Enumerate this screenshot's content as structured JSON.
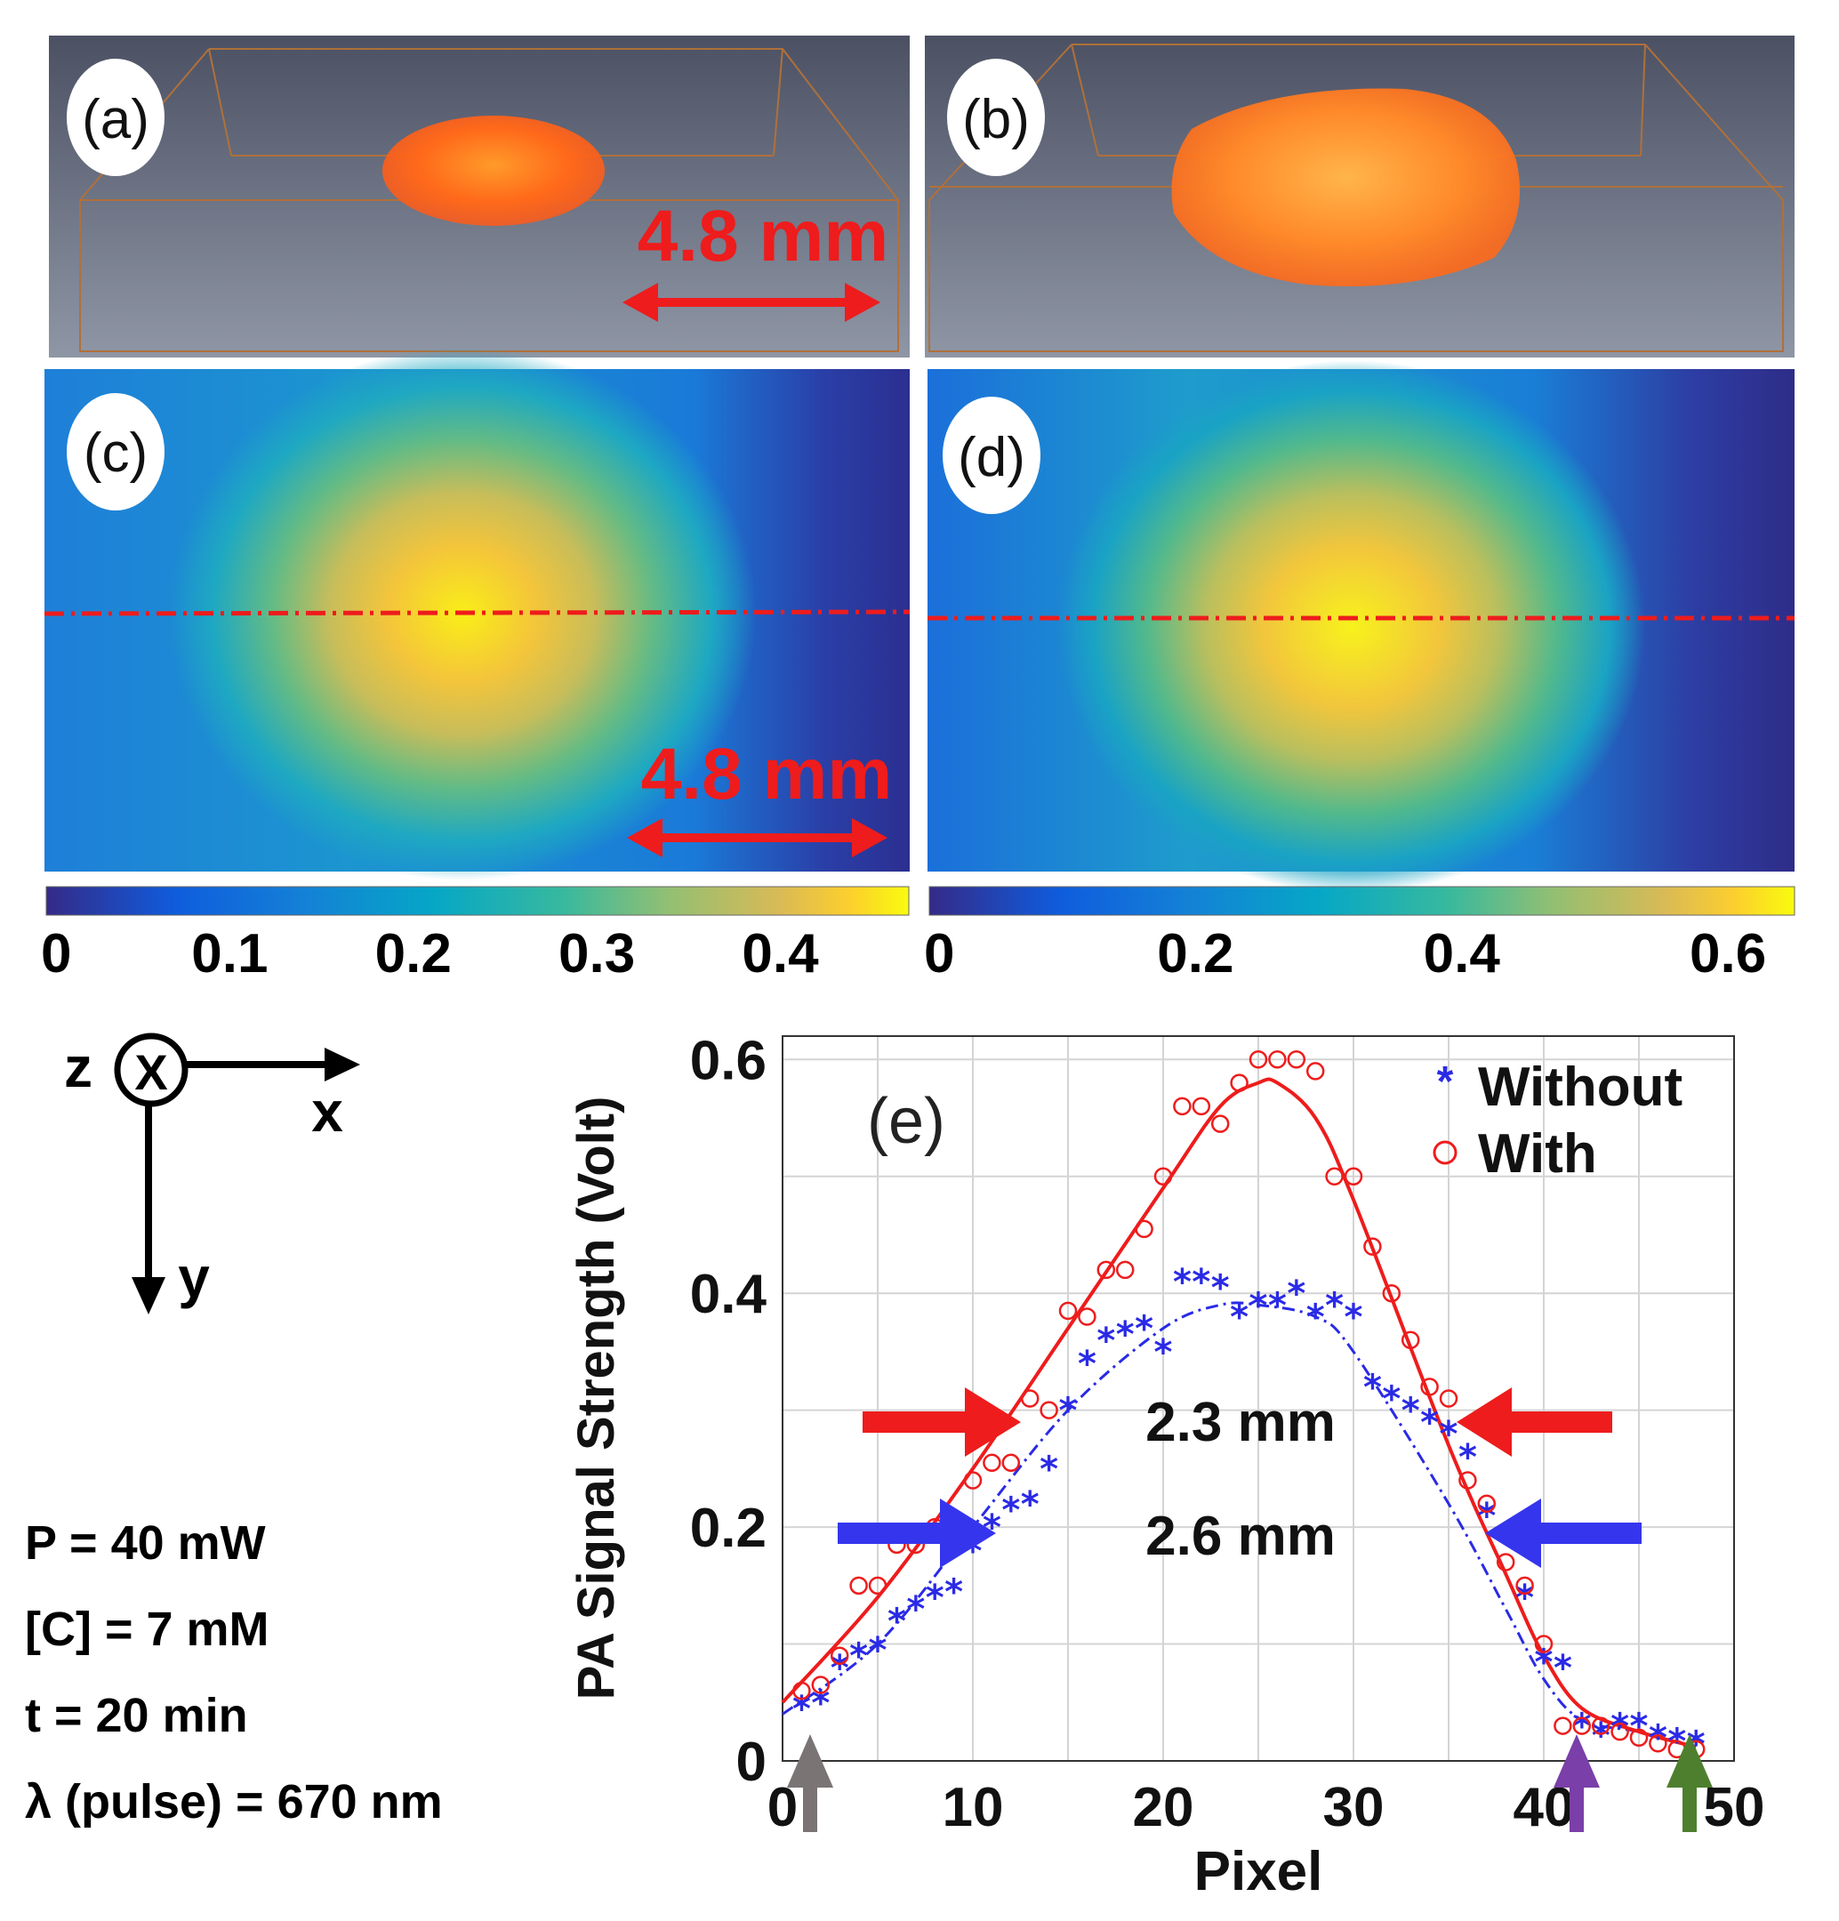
{
  "panel_labels": {
    "a": "(a)",
    "b": "(b)",
    "c": "(c)",
    "d": "(d)",
    "e": "(e)"
  },
  "scale_bar_label": "4.8 mm",
  "colorbar_c": {
    "ticks": [
      0,
      0.1,
      0.2,
      0.3,
      0.4
    ],
    "labels": [
      "0",
      "0.1",
      "0.2",
      "0.3",
      "0.4"
    ],
    "max": 0.47
  },
  "colorbar_d": {
    "ticks": [
      0,
      0.2,
      0.4,
      0.6
    ],
    "labels": [
      "0",
      "0.2",
      "0.4",
      "0.6"
    ],
    "max": 0.65
  },
  "axes_legend": {
    "z": "z",
    "x": "x",
    "y": "y",
    "symbol": "X"
  },
  "params": [
    "P = 40 mW",
    "[C] = 7 mM",
    "t = 20 min",
    "λ (pulse) = 670 nm"
  ],
  "colors": {
    "with": "#ee1c1c",
    "without": "#2a2ae6",
    "red_arrow": "#ee1c1c",
    "blue_arrow": "#3535ee",
    "gray_arrow": "#7a7474",
    "purple_arrow": "#7a3fa8",
    "green_arrow": "#4e7f2f"
  },
  "chart_data": {
    "type": "scatter",
    "title": "(e)",
    "xlabel": "Pixel",
    "ylabel": "PA Signal Strength (Volt)",
    "xlim": [
      0,
      50
    ],
    "ylim": [
      0,
      0.62
    ],
    "xticks": [
      0,
      10,
      20,
      30,
      40,
      50
    ],
    "xticklabels": [
      "0",
      "10",
      "20",
      "30",
      "40",
      "50"
    ],
    "yticks": [
      0,
      0.2,
      0.4,
      0.6
    ],
    "yticklabels": [
      "0",
      "0.2",
      "0.4",
      "0.6"
    ],
    "grid": true,
    "legend_position": "top-right",
    "series": [
      {
        "name": "Without",
        "marker": "asterisk",
        "x": [
          1,
          2,
          3,
          4,
          5,
          6,
          7,
          8,
          9,
          10,
          11,
          12,
          13,
          14,
          15,
          16,
          17,
          18,
          19,
          20,
          21,
          22,
          23,
          24,
          25,
          26,
          27,
          28,
          29,
          30,
          31,
          32,
          33,
          34,
          35,
          36,
          37,
          38,
          39,
          40,
          41,
          42,
          43,
          44,
          45,
          46,
          47,
          48
        ],
        "y": [
          0.045,
          0.05,
          0.08,
          0.09,
          0.095,
          0.12,
          0.13,
          0.14,
          0.145,
          0.18,
          0.2,
          0.215,
          0.22,
          0.25,
          0.3,
          0.34,
          0.36,
          0.365,
          0.37,
          0.35,
          0.41,
          0.41,
          0.405,
          0.38,
          0.39,
          0.39,
          0.4,
          0.38,
          0.39,
          0.38,
          0.32,
          0.31,
          0.3,
          0.29,
          0.28,
          0.26,
          0.21,
          0.19,
          0.14,
          0.085,
          0.08,
          0.03,
          0.022,
          0.03,
          0.03,
          0.02,
          0.017,
          0.015
        ]
      },
      {
        "name": "With",
        "marker": "circle",
        "x": [
          1,
          2,
          3,
          4,
          5,
          6,
          7,
          8,
          9,
          10,
          11,
          12,
          13,
          14,
          15,
          16,
          17,
          18,
          19,
          20,
          21,
          22,
          23,
          24,
          25,
          26,
          27,
          28,
          29,
          30,
          31,
          32,
          33,
          34,
          35,
          36,
          37,
          38,
          39,
          40,
          41,
          42,
          43,
          44,
          45,
          46,
          47,
          48
        ],
        "y": [
          0.06,
          0.065,
          0.09,
          0.15,
          0.15,
          0.185,
          0.185,
          0.2,
          0.205,
          0.24,
          0.255,
          0.255,
          0.31,
          0.3,
          0.385,
          0.38,
          0.42,
          0.42,
          0.455,
          0.5,
          0.56,
          0.56,
          0.545,
          0.58,
          0.6,
          0.6,
          0.6,
          0.59,
          0.5,
          0.5,
          0.44,
          0.4,
          0.36,
          0.32,
          0.31,
          0.24,
          0.22,
          0.17,
          0.15,
          0.1,
          0.03,
          0.03,
          0.03,
          0.025,
          0.02,
          0.015,
          0.01,
          0.01
        ]
      }
    ],
    "fits": [
      {
        "name": "Without fit",
        "style": "dash-dot",
        "x": [
          0,
          5,
          10,
          15,
          20,
          23,
          25,
          28,
          30,
          35,
          38,
          40,
          42,
          45,
          48
        ],
        "y": [
          0.04,
          0.1,
          0.2,
          0.3,
          0.37,
          0.39,
          0.39,
          0.38,
          0.35,
          0.22,
          0.13,
          0.07,
          0.035,
          0.025,
          0.012
        ]
      },
      {
        "name": "With fit",
        "style": "solid",
        "x": [
          0,
          5,
          10,
          15,
          20,
          23,
          25,
          26,
          28,
          30,
          35,
          38,
          40,
          42,
          45,
          48
        ],
        "y": [
          0.05,
          0.14,
          0.25,
          0.37,
          0.49,
          0.56,
          0.58,
          0.58,
          0.55,
          0.48,
          0.27,
          0.16,
          0.09,
          0.045,
          0.025,
          0.012
        ]
      }
    ],
    "annotations": [
      {
        "text": "2.3 mm",
        "type": "FWHM",
        "series": "With"
      },
      {
        "text": "2.6 mm",
        "type": "FWHM",
        "series": "Without"
      }
    ]
  }
}
